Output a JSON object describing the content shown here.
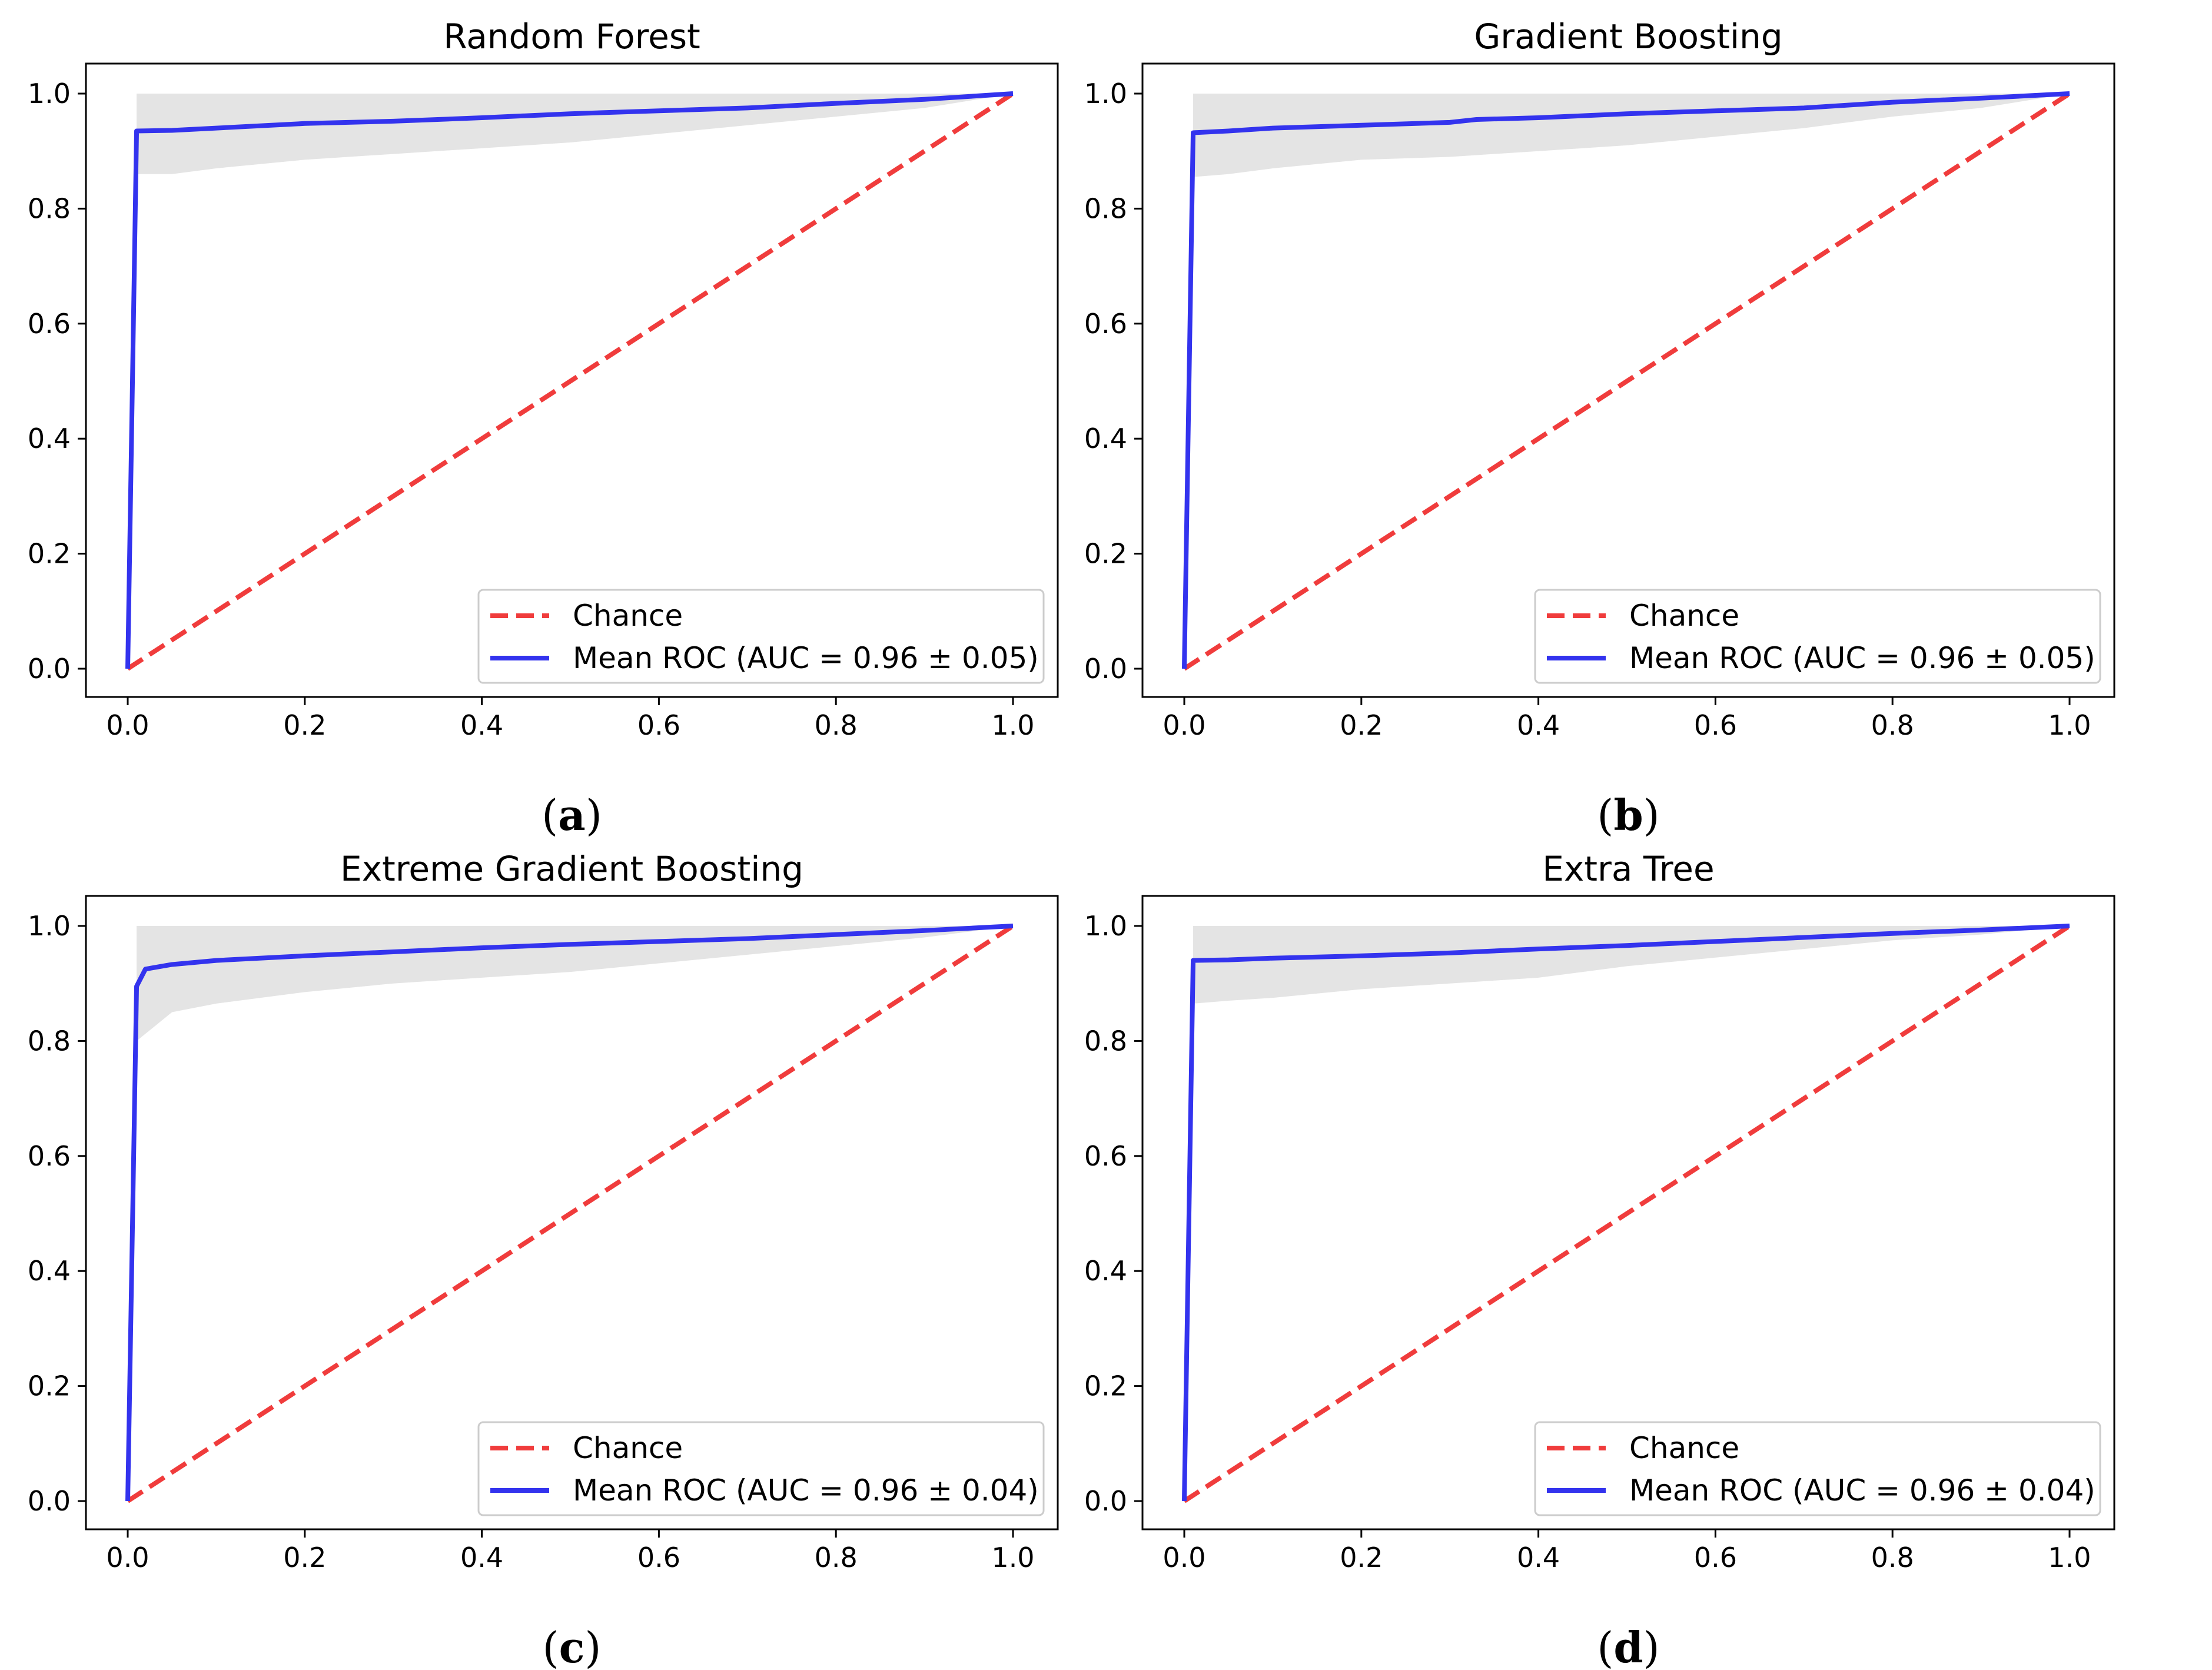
{
  "colors": {
    "chance": "#f03c3c",
    "roc": "#3333ee",
    "band": "#d9d9d9",
    "axis": "#000000"
  },
  "chart_data": [
    {
      "type": "line",
      "title": "Random Forest",
      "caption_letter": "a",
      "xlim": [
        0,
        1
      ],
      "ylim": [
        0,
        1
      ],
      "xticks": [
        "0.0",
        "0.2",
        "0.4",
        "0.6",
        "0.8",
        "1.0"
      ],
      "yticks": [
        "0.0",
        "0.2",
        "0.4",
        "0.6",
        "0.8",
        "1.0"
      ],
      "legend_location": "lower right",
      "series": [
        {
          "name": "Chance",
          "style": "dashed",
          "x": [
            0,
            1
          ],
          "y": [
            0,
            1
          ]
        },
        {
          "name": "Mean ROC (AUC = 0.96 ± 0.05)",
          "style": "solid",
          "x": [
            0,
            0.01,
            0.05,
            0.1,
            0.2,
            0.3,
            0.4,
            0.5,
            0.6,
            0.7,
            0.8,
            0.9,
            1.0
          ],
          "y": [
            0,
            0.935,
            0.936,
            0.94,
            0.948,
            0.952,
            0.958,
            0.965,
            0.97,
            0.975,
            0.983,
            0.99,
            1.0
          ]
        }
      ],
      "band": {
        "x": [
          0.01,
          0.05,
          0.1,
          0.2,
          0.3,
          0.4,
          0.5,
          0.6,
          0.7,
          0.8,
          0.9,
          1.0
        ],
        "upper": [
          1.0,
          1.0,
          1.0,
          1.0,
          1.0,
          1.0,
          1.0,
          1.0,
          1.0,
          1.0,
          1.0,
          1.0
        ],
        "lower": [
          0.86,
          0.86,
          0.87,
          0.885,
          0.895,
          0.905,
          0.915,
          0.93,
          0.945,
          0.96,
          0.975,
          1.0
        ]
      }
    },
    {
      "type": "line",
      "title": "Gradient Boosting",
      "caption_letter": "b",
      "xlim": [
        0,
        1
      ],
      "ylim": [
        0,
        1
      ],
      "xticks": [
        "0.0",
        "0.2",
        "0.4",
        "0.6",
        "0.8",
        "1.0"
      ],
      "yticks": [
        "0.0",
        "0.2",
        "0.4",
        "0.6",
        "0.8",
        "1.0"
      ],
      "legend_location": "lower right",
      "series": [
        {
          "name": "Chance",
          "style": "dashed",
          "x": [
            0,
            1
          ],
          "y": [
            0,
            1
          ]
        },
        {
          "name": "Mean ROC (AUC = 0.96 ± 0.05)",
          "style": "solid",
          "x": [
            0,
            0.01,
            0.05,
            0.1,
            0.2,
            0.3,
            0.33,
            0.4,
            0.5,
            0.6,
            0.7,
            0.8,
            0.9,
            1.0
          ],
          "y": [
            0,
            0.932,
            0.935,
            0.94,
            0.945,
            0.95,
            0.955,
            0.958,
            0.965,
            0.97,
            0.975,
            0.985,
            0.992,
            1.0
          ]
        }
      ],
      "band": {
        "x": [
          0.01,
          0.05,
          0.1,
          0.2,
          0.3,
          0.4,
          0.5,
          0.6,
          0.7,
          0.8,
          0.9,
          1.0
        ],
        "upper": [
          1.0,
          1.0,
          1.0,
          1.0,
          1.0,
          1.0,
          1.0,
          1.0,
          1.0,
          1.0,
          1.0,
          1.0
        ],
        "lower": [
          0.855,
          0.86,
          0.87,
          0.885,
          0.89,
          0.9,
          0.91,
          0.925,
          0.94,
          0.96,
          0.975,
          1.0
        ]
      }
    },
    {
      "type": "line",
      "title": "Extreme Gradient Boosting",
      "caption_letter": "c",
      "xlim": [
        0,
        1
      ],
      "ylim": [
        0,
        1
      ],
      "xticks": [
        "0.0",
        "0.2",
        "0.4",
        "0.6",
        "0.8",
        "1.0"
      ],
      "yticks": [
        "0.0",
        "0.2",
        "0.4",
        "0.6",
        "0.8",
        "1.0"
      ],
      "legend_location": "lower right",
      "series": [
        {
          "name": "Chance",
          "style": "dashed",
          "x": [
            0,
            1
          ],
          "y": [
            0,
            1
          ]
        },
        {
          "name": "Mean ROC (AUC = 0.96 ± 0.04)",
          "style": "solid",
          "x": [
            0,
            0.01,
            0.02,
            0.05,
            0.1,
            0.2,
            0.3,
            0.4,
            0.5,
            0.6,
            0.7,
            0.8,
            0.9,
            1.0
          ],
          "y": [
            0,
            0.895,
            0.925,
            0.933,
            0.94,
            0.948,
            0.955,
            0.962,
            0.968,
            0.973,
            0.978,
            0.985,
            0.992,
            1.0
          ]
        }
      ],
      "band": {
        "x": [
          0.01,
          0.05,
          0.1,
          0.2,
          0.3,
          0.4,
          0.5,
          0.6,
          0.7,
          0.8,
          0.9,
          1.0
        ],
        "upper": [
          1.0,
          1.0,
          1.0,
          1.0,
          1.0,
          1.0,
          1.0,
          1.0,
          1.0,
          1.0,
          1.0,
          1.0
        ],
        "lower": [
          0.8,
          0.85,
          0.865,
          0.885,
          0.9,
          0.91,
          0.92,
          0.935,
          0.95,
          0.965,
          0.98,
          1.0
        ]
      }
    },
    {
      "type": "line",
      "title": "Extra Tree",
      "caption_letter": "d",
      "xlim": [
        0,
        1
      ],
      "ylim": [
        0,
        1
      ],
      "xticks": [
        "0.0",
        "0.2",
        "0.4",
        "0.6",
        "0.8",
        "1.0"
      ],
      "yticks": [
        "0.0",
        "0.2",
        "0.4",
        "0.6",
        "0.8",
        "1.0"
      ],
      "legend_location": "lower right",
      "series": [
        {
          "name": "Chance",
          "style": "dashed",
          "x": [
            0,
            1
          ],
          "y": [
            0,
            1
          ]
        },
        {
          "name": "Mean ROC (AUC = 0.96 ± 0.04)",
          "style": "solid",
          "x": [
            0,
            0.01,
            0.05,
            0.1,
            0.2,
            0.3,
            0.4,
            0.5,
            0.6,
            0.7,
            0.8,
            0.9,
            1.0
          ],
          "y": [
            0,
            0.94,
            0.941,
            0.944,
            0.948,
            0.953,
            0.96,
            0.966,
            0.973,
            0.98,
            0.987,
            0.993,
            1.0
          ]
        }
      ],
      "band": {
        "x": [
          0.01,
          0.05,
          0.1,
          0.2,
          0.3,
          0.4,
          0.5,
          0.6,
          0.7,
          0.8,
          0.9,
          1.0
        ],
        "upper": [
          1.0,
          1.0,
          1.0,
          1.0,
          1.0,
          1.0,
          1.0,
          1.0,
          1.0,
          1.0,
          1.0,
          1.0
        ],
        "lower": [
          0.865,
          0.87,
          0.875,
          0.89,
          0.9,
          0.91,
          0.93,
          0.945,
          0.96,
          0.975,
          0.985,
          1.0
        ]
      }
    }
  ]
}
